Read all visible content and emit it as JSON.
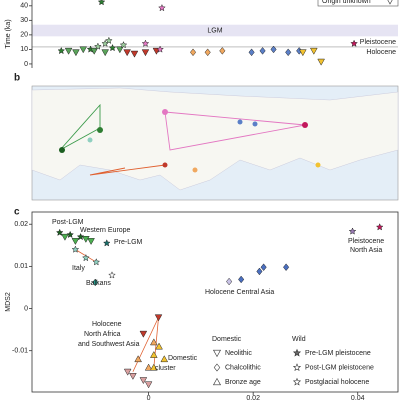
{
  "chart_data": [
    {
      "type": "scatter",
      "ylabel": "Time (ka)",
      "xlim": [
        0,
        100
      ],
      "ylim": [
        -2.8,
        44
      ],
      "yticks": [
        0,
        10,
        20,
        30,
        40
      ],
      "band": [
        19,
        27
      ],
      "band_label": "LGM",
      "boundary": 11.7,
      "boundary_labels": [
        "Pleistocene",
        "Holocene"
      ],
      "legend_text": "Origin unknown",
      "series": [
        {
          "color": "#2e7d32",
          "marker": "star",
          "values": [
            [
              8,
              9
            ],
            [
              16,
              10
            ],
            [
              22,
              11
            ],
            [
              19,
              42.6
            ]
          ]
        },
        {
          "color": "#5aa35a",
          "marker": "tri-down",
          "values": [
            [
              10,
              9
            ],
            [
              12,
              8
            ],
            [
              14,
              10
            ],
            [
              17,
              9
            ],
            [
              20,
              8
            ],
            [
              24,
              10
            ]
          ]
        },
        {
          "color": "#9ccc9c",
          "marker": "star",
          "values": [
            [
              18,
              12
            ],
            [
              20,
              14
            ],
            [
              21,
              16
            ],
            [
              25,
              13
            ]
          ]
        },
        {
          "color": "#c0392b",
          "marker": "tri-down",
          "values": [
            [
              26,
              8
            ],
            [
              28,
              7
            ],
            [
              31,
              8
            ],
            [
              34,
              9
            ]
          ]
        },
        {
          "color": "#e377c2",
          "marker": "star",
          "values": [
            [
              31,
              14
            ],
            [
              35,
              10
            ],
            [
              35.5,
              38.5
            ]
          ]
        },
        {
          "color": "#f0a860",
          "marker": "diamond",
          "values": [
            [
              44,
              8
            ],
            [
              48,
              8
            ],
            [
              52,
              9
            ]
          ]
        },
        {
          "color": "#5b7fc7",
          "marker": "diamond",
          "values": [
            [
              60,
              8
            ],
            [
              63,
              9
            ],
            [
              66,
              10
            ],
            [
              70,
              8
            ],
            [
              73,
              9
            ]
          ]
        },
        {
          "color": "#f2c230",
          "marker": "tri-down",
          "values": [
            [
              74,
              8
            ],
            [
              77,
              9
            ],
            [
              79,
              1.5
            ]
          ]
        },
        {
          "color": "#c2185b",
          "marker": "star",
          "values": [
            [
              88,
              14
            ]
          ]
        }
      ]
    },
    {
      "type": "scatter",
      "ylabel": "MDS2",
      "xlim": [
        -0.0223,
        0.0477
      ],
      "ylim": [
        -0.0198,
        0.0229
      ],
      "yticks": [
        0.02,
        0.01,
        0,
        -0.01
      ],
      "xticks": [
        0,
        0.02,
        0.04
      ],
      "annotations": [
        "Post-LGM",
        "Western Europe",
        "Pre-LGM",
        "Italy",
        "Balkans",
        "Holocene Central Asia",
        "Pleistocene",
        "North Asia",
        "Holocene",
        "North Africa",
        "and Southwest Asia",
        "Domestic",
        "cluster"
      ],
      "legend": [
        {
          "title": "Domestic",
          "items": [
            {
              "label": "Neolithic",
              "marker": "tri-down"
            },
            {
              "label": "Chalcolithic",
              "marker": "diamond"
            },
            {
              "label": "Bronze age",
              "marker": "tri-up"
            }
          ]
        },
        {
          "title": "Wild",
          "items": [
            {
              "label": "Pre-LGM pleistocene",
              "marker": "star-dark"
            },
            {
              "label": "Post-LGM pleistocene",
              "marker": "star"
            },
            {
              "label": "Postglacial holocene",
              "marker": "star-light"
            }
          ]
        }
      ],
      "series": [
        {
          "color": "#1b5e20",
          "marker": "star",
          "values": [
            [
              -0.017,
              0.018
            ],
            [
              -0.015,
              0.0175
            ],
            [
              -0.013,
              0.017
            ]
          ]
        },
        {
          "color": "#4caf50",
          "marker": "tri-down",
          "values": [
            [
              -0.016,
              0.017
            ],
            [
              -0.014,
              0.016
            ],
            [
              -0.012,
              0.0165
            ],
            [
              -0.011,
              0.016
            ]
          ]
        },
        {
          "color": "#1a6f6a",
          "marker": "star",
          "values": [
            [
              -0.008,
              0.0155
            ]
          ]
        },
        {
          "color": "#8fd0c0",
          "marker": "star",
          "values": [
            [
              -0.014,
              0.014
            ],
            [
              -0.012,
              0.012
            ],
            [
              -0.01,
              0.011
            ]
          ]
        },
        {
          "color": "#2a9d8f",
          "marker": "diamond",
          "values": [
            [
              -0.0102,
              0.0062
            ]
          ]
        },
        {
          "color": "#f5f5f5",
          "marker": "star",
          "values": [
            [
              -0.007,
              0.0079
            ]
          ]
        },
        {
          "color": "#4a6fc0",
          "marker": "diamond",
          "values": [
            [
              0.0177,
              0.0069
            ],
            [
              0.0212,
              0.0088
            ],
            [
              0.022,
              0.0098
            ],
            [
              0.0263,
              0.0098
            ]
          ]
        },
        {
          "color": "#c9c3e6",
          "marker": "diamond",
          "values": [
            [
              0.0154,
              0.0064
            ]
          ]
        },
        {
          "color": "#9a7bb5",
          "marker": "star",
          "values": [
            [
              0.039,
              0.0183
            ]
          ]
        },
        {
          "color": "#c2185b",
          "marker": "star",
          "values": [
            [
              0.0442,
              0.0193
            ]
          ]
        },
        {
          "color": "#c0392b",
          "marker": "tri-down",
          "values": [
            [
              0.0019,
              -0.0021
            ],
            [
              -0.001,
              -0.006
            ]
          ]
        },
        {
          "color": "#f0a860",
          "marker": "tri-up",
          "values": [
            [
              0.001,
              -0.008
            ],
            [
              -0.002,
              -0.012
            ],
            [
              0,
              -0.014
            ]
          ]
        },
        {
          "color": "#f2c230",
          "marker": "tri-up",
          "values": [
            [
              0.002,
              -0.009
            ],
            [
              0.001,
              -0.011
            ],
            [
              0.003,
              -0.012
            ],
            [
              0.001,
              -0.014
            ]
          ]
        },
        {
          "color": "#d9a0a0",
          "marker": "tri-down",
          "values": [
            [
              -0.003,
              -0.016
            ],
            [
              -0.001,
              -0.017
            ],
            [
              0,
              -0.018
            ],
            [
              -0.004,
              -0.015
            ]
          ]
        }
      ]
    }
  ],
  "panels": [
    "b",
    "c"
  ]
}
